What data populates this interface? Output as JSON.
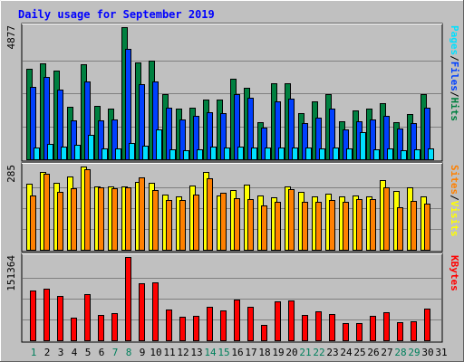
{
  "chart_data": {
    "type": "bar",
    "title": "Daily usage for September 2019",
    "x": [
      "1",
      "2",
      "3",
      "4",
      "5",
      "6",
      "7",
      "8",
      "9",
      "10",
      "11",
      "12",
      "13",
      "14",
      "15",
      "16",
      "17",
      "18",
      "19",
      "20",
      "21",
      "22",
      "23",
      "24",
      "25",
      "26",
      "27",
      "28",
      "29",
      "30",
      "31"
    ],
    "weekend_days": [
      "1",
      "7",
      "8",
      "14",
      "15",
      "21",
      "22",
      "28",
      "29"
    ],
    "panels": [
      {
        "id": "hits_files_pages",
        "ymax_label": "4877",
        "ylim": [
          0,
          4877
        ],
        "legend": [
          "Pages",
          "/",
          "Files",
          "/",
          "Hits"
        ],
        "series": [
          {
            "name": "Hits",
            "color": "#008040",
            "values": [
              3355,
              3555,
              3262,
              1936,
              3502,
              1966,
              1873,
              4877,
              3574,
              3637,
              2415,
              1868,
              1903,
              2209,
              2209,
              2962,
              2653,
              1366,
              2807,
              2804,
              1703,
              2141,
              2419,
              1393,
              1812,
              1879,
              2066,
              1373,
              1656,
              2414,
              0
            ]
          },
          {
            "name": "Files",
            "color": "#0040ff",
            "values": [
              2656,
              3039,
              2556,
              1436,
              2879,
              1449,
              1469,
              4072,
              2776,
              2868,
              1909,
              1467,
              1590,
              1725,
              1692,
              2413,
              2276,
              1153,
              2125,
              2236,
              1345,
              1536,
              1857,
              1106,
              1405,
              1454,
              1590,
              1149,
              1322,
              1918,
              0
            ]
          },
          {
            "name": "Pages",
            "color": "#00e0ff",
            "values": [
              450,
              560,
              455,
              520,
              915,
              405,
              400,
              595,
              505,
              1110,
              380,
              335,
              375,
              465,
              445,
              455,
              450,
              420,
              450,
              430,
              420,
              410,
              450,
              395,
              1000,
              365,
              395,
              325,
              370,
              400,
              0
            ]
          }
        ]
      },
      {
        "id": "visits_sites",
        "ymax_label": "285",
        "ylim": [
          0,
          285
        ],
        "legend": [
          "Sites",
          "/",
          "Visits"
        ],
        "series": [
          {
            "name": "Visits",
            "color": "#ffff00",
            "values": [
              226,
              265,
              228,
              250,
              285,
              216,
              216,
              216,
              231,
              229,
              189,
              183,
              219,
              266,
              186,
              203,
              223,
              185,
              180,
              218,
              198,
              184,
              193,
              184,
              185,
              183,
              239,
              200,
              214,
              182,
              0
            ]
          },
          {
            "name": "Sites",
            "color": "#ff8000",
            "values": [
              185,
              259,
              197,
              211,
              276,
              214,
              212,
              213,
              248,
              203,
              170,
              171,
              190,
              244,
              194,
              177,
              173,
              153,
              165,
              209,
              164,
              165,
              171,
              163,
              172,
              172,
              213,
              147,
              167,
              158,
              0
            ]
          }
        ]
      },
      {
        "id": "kbytes",
        "ymax_label": "151364",
        "ylim": [
          0,
          151364
        ],
        "legend": [
          "KBytes"
        ],
        "series": [
          {
            "name": "KBytes",
            "color": "#ff0000",
            "values": [
              90150,
              94200,
              81150,
              41900,
              84100,
              46050,
              49500,
              151364,
              104100,
              106100,
              55250,
              43550,
              44700,
              60400,
              53500,
              74350,
              60100,
              28250,
              70900,
              71750,
              45600,
              52850,
              47900,
              31050,
              31400,
              45100,
              50550,
              33250,
              34600,
              57800,
              0
            ]
          }
        ]
      }
    ],
    "colors": {
      "background": "#c0c0c0",
      "plot_bg": "#c0c0c0",
      "grid": "#808080",
      "title": "#0000ff",
      "weekend_label": "#00805c",
      "weekday_label": "#000000"
    }
  }
}
